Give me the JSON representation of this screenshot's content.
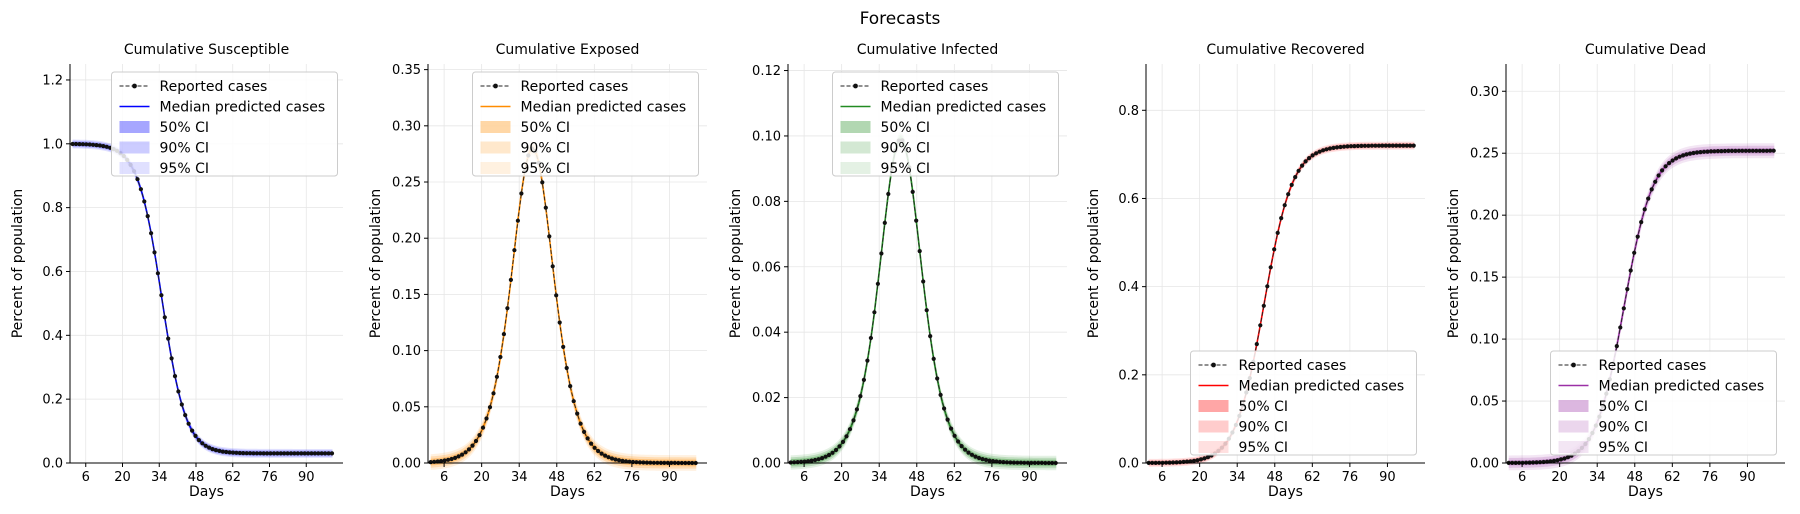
{
  "suptitle": "Forecasts",
  "legend_labels": {
    "reported": "Reported cases",
    "median": "Median predicted cases",
    "ci50": "50% CI",
    "ci90": "90% CI",
    "ci95": "95% CI"
  },
  "chart_data": [
    {
      "type": "line",
      "title": "Cumulative Susceptible",
      "xlabel": "Days",
      "ylabel": "Percent of population",
      "color": "#0000ff",
      "xlim": [
        0,
        104
      ],
      "ylim": [
        0,
        1.25
      ],
      "xticks": [
        6,
        20,
        34,
        48,
        62,
        76,
        90
      ],
      "yticks": [
        0.0,
        0.2,
        0.4,
        0.6,
        0.8,
        1.0,
        1.2
      ],
      "ytick_labels": [
        "0.0",
        "0.2",
        "0.4",
        "0.6",
        "0.8",
        "1.0",
        "1.2"
      ],
      "legend_position": "top-center",
      "curve": {
        "kind": "logistic",
        "start": 1.0,
        "end": 0.03,
        "midpoint": 35,
        "rate": 0.22
      },
      "x_range": [
        1,
        100
      ],
      "ci_width": [
        0.006,
        0.01,
        0.014
      ]
    },
    {
      "type": "line",
      "title": "Cumulative Exposed",
      "xlabel": "Days",
      "ylabel": "Percent of population",
      "color": "#ff8c00",
      "xlim": [
        0,
        104
      ],
      "ylim": [
        0,
        0.355
      ],
      "xticks": [
        6,
        20,
        34,
        48,
        62,
        76,
        90
      ],
      "yticks": [
        0.0,
        0.05,
        0.1,
        0.15,
        0.2,
        0.25,
        0.3,
        0.35
      ],
      "ytick_labels": [
        "0.00",
        "0.05",
        "0.10",
        "0.15",
        "0.20",
        "0.25",
        "0.30",
        "0.35"
      ],
      "legend_position": "top-center",
      "curve": {
        "kind": "peak",
        "peak": 0.28,
        "center": 39,
        "rate": 0.19
      },
      "x_range": [
        1,
        100
      ],
      "ci_width": [
        0.003,
        0.005,
        0.007
      ]
    },
    {
      "type": "line",
      "title": "Cumulative Infected",
      "xlabel": "Days",
      "ylabel": "Percent of population",
      "color": "#228b22",
      "xlim": [
        0,
        104
      ],
      "ylim": [
        0,
        0.122
      ],
      "xticks": [
        6,
        20,
        34,
        48,
        62,
        76,
        90
      ],
      "yticks": [
        0.0,
        0.02,
        0.04,
        0.06,
        0.08,
        0.1,
        0.12
      ],
      "ytick_labels": [
        "0.00",
        "0.02",
        "0.04",
        "0.06",
        "0.08",
        "0.10",
        "0.12"
      ],
      "legend_position": "top-center",
      "curve": {
        "kind": "peak",
        "peak": 0.099,
        "center": 42,
        "rate": 0.19
      },
      "x_range": [
        1,
        100
      ],
      "ci_width": [
        0.001,
        0.0016,
        0.0022
      ]
    },
    {
      "type": "line",
      "title": "Cumulative Recovered",
      "xlabel": "Days",
      "ylabel": "Percent of population",
      "color": "#ff0000",
      "xlim": [
        0,
        104
      ],
      "ylim": [
        0,
        0.905
      ],
      "xticks": [
        6,
        20,
        34,
        48,
        62,
        76,
        90
      ],
      "yticks": [
        0.0,
        0.2,
        0.4,
        0.6,
        0.8
      ],
      "ytick_labels": [
        "0.0",
        "0.2",
        "0.4",
        "0.6",
        "0.8"
      ],
      "legend_position": "bottom-center",
      "curve": {
        "kind": "logistic",
        "start": 0.0,
        "end": 0.72,
        "midpoint": 44,
        "rate": 0.19
      },
      "x_range": [
        1,
        100
      ],
      "ci_width": [
        0.003,
        0.006,
        0.009
      ]
    },
    {
      "type": "line",
      "title": "Cumulative Dead",
      "xlabel": "Days",
      "ylabel": "Percent of population",
      "color": "#9b30a6",
      "xlim": [
        0,
        104
      ],
      "ylim": [
        0,
        0.322
      ],
      "xticks": [
        6,
        20,
        34,
        48,
        62,
        76,
        90
      ],
      "yticks": [
        0.0,
        0.05,
        0.1,
        0.15,
        0.2,
        0.25,
        0.3
      ],
      "ytick_labels": [
        "0.00",
        "0.05",
        "0.10",
        "0.15",
        "0.20",
        "0.25",
        "0.30"
      ],
      "legend_position": "bottom-center",
      "curve": {
        "kind": "logistic",
        "start": 0.0,
        "end": 0.252,
        "midpoint": 44,
        "rate": 0.19
      },
      "x_range": [
        1,
        100
      ],
      "ci_width": [
        0.002,
        0.004,
        0.006
      ]
    }
  ]
}
